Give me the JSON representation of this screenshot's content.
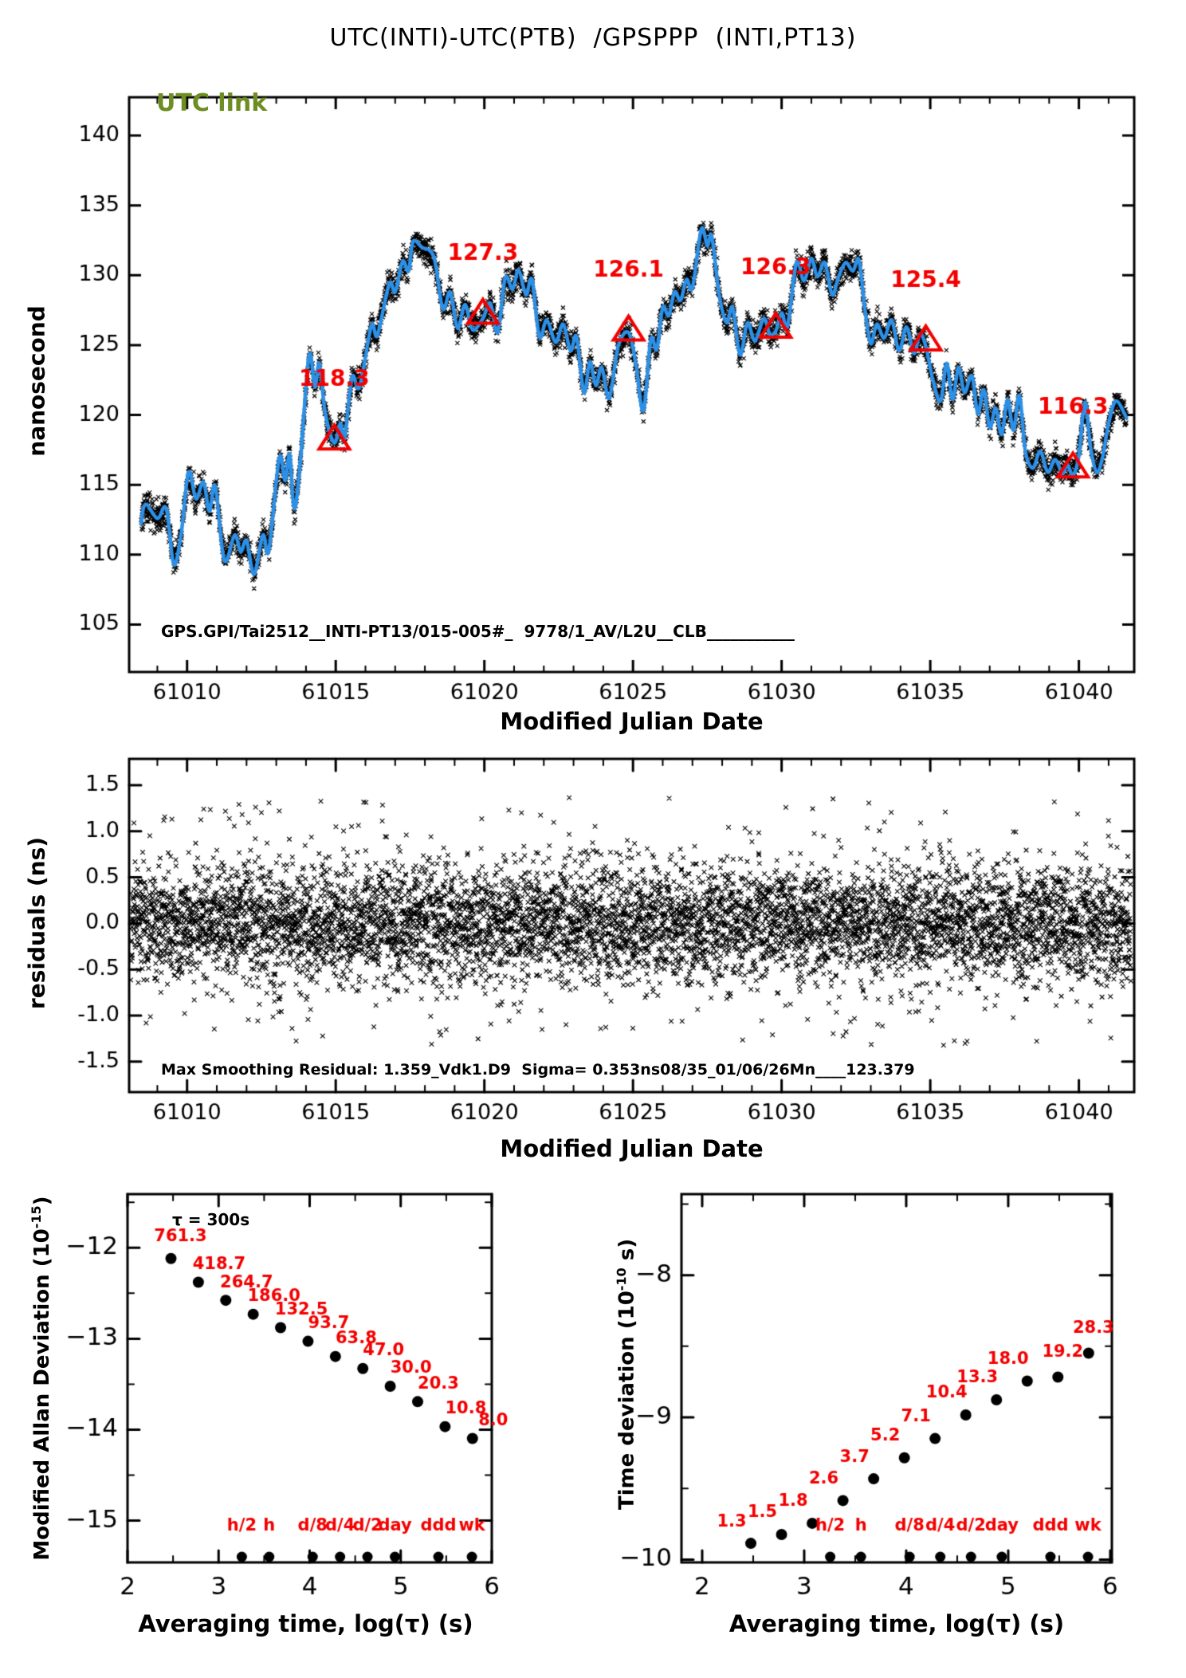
{
  "title": "UTC(INTI)-UTC(PTB)  /GPSPPP  (INTI,PT13)",
  "panels": {
    "top": {
      "corner_label": "UTC link",
      "ylabel": "nanosecond",
      "xlabel": "Modified Julian Date",
      "annotation": "GPS.GPI/Tai2512__INTI-PT13/015-005#_  9778/1_AV/L2U__CLB___________"
    },
    "residuals": {
      "ylabel": "residuals (ns)",
      "xlabel": "Modified Julian Date",
      "annotation": "Max Smoothing Residual: 1.359_Vdk1.D9  Sigma= 0.353ns08/35_01/06/26Mn____123.379"
    },
    "mdev": {
      "ylabel_prefix": "Modified Allan Deviation (10",
      "ylabel_exp": "-15",
      "ylabel_suffix": ")",
      "xlabel": "Averaging time, log(τ) (s)",
      "tau_note": "τ = 300s"
    },
    "tdev": {
      "ylabel_prefix": "Time deviation (10",
      "ylabel_exp": "-10",
      "ylabel_suffix": " s)",
      "xlabel": "Averaging time, log(τ) (s)"
    }
  },
  "colors": {
    "line_blue": "#2b90e8",
    "marker_black": "#000000",
    "accent_red": "#f40000",
    "olive_green": "#6e8e22"
  },
  "chart_data": [
    {
      "id": "utc-link-timeseries",
      "type": "line",
      "title": "UTC(INTI)-UTC(PTB) /GPSPPP (INTI,PT13)",
      "xlabel": "Modified Julian Date",
      "ylabel": "nanosecond",
      "xlim": [
        61008.05,
        61041.86
      ],
      "ylim": [
        101.6,
        142.74
      ],
      "xticks": [
        61010,
        61015,
        61020,
        61025,
        61030,
        61035,
        61040
      ],
      "xtick_labels": [
        "61010",
        "61015",
        "61020",
        "61025",
        "61030",
        "61035",
        "61040"
      ],
      "xminor_step": 1,
      "yticks": [
        140,
        135,
        130,
        125,
        120,
        115,
        110,
        105
      ],
      "ytick_labels": [
        "140",
        "135",
        "130",
        "125",
        "120",
        "115",
        "110",
        "105"
      ],
      "data_domain": [
        61008.45,
        61041.6
      ],
      "scatter_n": 5200,
      "noise_sigma_ns": 0.5,
      "smoothed_keypoints": [
        [
          61008.45,
          112.2
        ],
        [
          61008.6,
          113.6
        ],
        [
          61009.0,
          112.6
        ],
        [
          61009.3,
          113.3
        ],
        [
          61009.55,
          109.3
        ],
        [
          61009.8,
          111.5
        ],
        [
          61010.05,
          115.9
        ],
        [
          61010.3,
          114.0
        ],
        [
          61010.55,
          115.2
        ],
        [
          61010.75,
          113.1
        ],
        [
          61010.95,
          114.9
        ],
        [
          61011.25,
          109.6
        ],
        [
          61011.6,
          111.4
        ],
        [
          61011.8,
          110.2
        ],
        [
          61012.0,
          111.0
        ],
        [
          61012.25,
          108.6
        ],
        [
          61012.55,
          111.4
        ],
        [
          61012.75,
          110.3
        ],
        [
          61013.1,
          116.9
        ],
        [
          61013.3,
          115.3
        ],
        [
          61013.45,
          117.2
        ],
        [
          61013.6,
          113.3
        ],
        [
          61013.8,
          116.4
        ],
        [
          61014.1,
          124.2
        ],
        [
          61014.3,
          122.0
        ],
        [
          61014.45,
          123.7
        ],
        [
          61014.65,
          120.1
        ],
        [
          61014.95,
          118.0
        ],
        [
          61015.15,
          119.4
        ],
        [
          61015.3,
          118.4
        ],
        [
          61015.55,
          122.7
        ],
        [
          61015.8,
          122.0
        ],
        [
          61016.2,
          126.4
        ],
        [
          61016.4,
          125.7
        ],
        [
          61016.8,
          129.4
        ],
        [
          61017.0,
          128.8
        ],
        [
          61017.25,
          131.0
        ],
        [
          61017.45,
          130.3
        ],
        [
          61017.6,
          132.4
        ],
        [
          61017.9,
          132.0
        ],
        [
          61018.3,
          131.3
        ],
        [
          61018.6,
          127.6
        ],
        [
          61018.85,
          128.8
        ],
        [
          61019.1,
          126.2
        ],
        [
          61019.35,
          127.9
        ],
        [
          61019.6,
          126.1
        ],
        [
          61019.95,
          126.9
        ],
        [
          61020.2,
          128.0
        ],
        [
          61020.45,
          125.9
        ],
        [
          61020.7,
          129.8
        ],
        [
          61020.95,
          129.0
        ],
        [
          61021.15,
          130.4
        ],
        [
          61021.4,
          128.6
        ],
        [
          61021.6,
          129.7
        ],
        [
          61021.85,
          125.6
        ],
        [
          61022.1,
          126.8
        ],
        [
          61022.4,
          125.2
        ],
        [
          61022.65,
          126.5
        ],
        [
          61022.9,
          124.6
        ],
        [
          61023.1,
          125.6
        ],
        [
          61023.35,
          121.6
        ],
        [
          61023.55,
          123.8
        ],
        [
          61023.75,
          122.1
        ],
        [
          61023.95,
          123.4
        ],
        [
          61024.2,
          121.2
        ],
        [
          61024.5,
          124.9
        ],
        [
          61024.85,
          125.9
        ],
        [
          61025.1,
          123.6
        ],
        [
          61025.35,
          120.3
        ],
        [
          61025.6,
          125.4
        ],
        [
          61025.8,
          124.7
        ],
        [
          61026.0,
          127.7
        ],
        [
          61026.2,
          127.1
        ],
        [
          61026.4,
          128.8
        ],
        [
          61026.6,
          128.2
        ],
        [
          61026.8,
          129.7
        ],
        [
          61027.0,
          129.1
        ],
        [
          61027.3,
          133.3
        ],
        [
          61027.5,
          132.1
        ],
        [
          61027.65,
          132.8
        ],
        [
          61027.9,
          128.6
        ],
        [
          61028.15,
          126.6
        ],
        [
          61028.35,
          127.7
        ],
        [
          61028.6,
          124.3
        ],
        [
          61028.85,
          126.6
        ],
        [
          61029.1,
          125.3
        ],
        [
          61029.4,
          126.9
        ],
        [
          61029.6,
          125.8
        ],
        [
          61029.8,
          126.0
        ],
        [
          61030.0,
          127.3
        ],
        [
          61030.2,
          126.4
        ],
        [
          61030.5,
          130.9
        ],
        [
          61030.75,
          129.6
        ],
        [
          61031.0,
          131.2
        ],
        [
          61031.2,
          129.9
        ],
        [
          61031.45,
          130.9
        ],
        [
          61031.7,
          128.6
        ],
        [
          61031.9,
          129.8
        ],
        [
          61032.15,
          130.9
        ],
        [
          61032.4,
          130.3
        ],
        [
          61032.6,
          131.1
        ],
        [
          61032.8,
          127.6
        ],
        [
          61033.0,
          125.1
        ],
        [
          61033.2,
          126.5
        ],
        [
          61033.45,
          125.5
        ],
        [
          61033.7,
          126.8
        ],
        [
          61033.95,
          124.6
        ],
        [
          61034.2,
          126.3
        ],
        [
          61034.45,
          124.4
        ],
        [
          61034.65,
          125.8
        ],
        [
          61034.85,
          124.9
        ],
        [
          61035.1,
          122.4
        ],
        [
          61035.35,
          121.0
        ],
        [
          61035.55,
          123.7
        ],
        [
          61035.75,
          121.1
        ],
        [
          61035.95,
          123.4
        ],
        [
          61036.15,
          121.6
        ],
        [
          61036.4,
          122.8
        ],
        [
          61036.6,
          120.1
        ],
        [
          61036.8,
          121.8
        ],
        [
          61037.0,
          119.1
        ],
        [
          61037.2,
          120.5
        ],
        [
          61037.4,
          118.6
        ],
        [
          61037.6,
          121.1
        ],
        [
          61037.8,
          118.9
        ],
        [
          61038.0,
          121.4
        ],
        [
          61038.2,
          117.4
        ],
        [
          61038.45,
          116.2
        ],
        [
          61038.7,
          117.4
        ],
        [
          61038.95,
          115.9
        ],
        [
          61039.2,
          116.8
        ],
        [
          61039.45,
          115.8
        ],
        [
          61039.6,
          116.5
        ],
        [
          61039.8,
          115.7
        ],
        [
          61040.0,
          117.1
        ],
        [
          61040.2,
          120.9
        ],
        [
          61040.4,
          117.6
        ],
        [
          61040.6,
          115.9
        ],
        [
          61040.8,
          117.0
        ],
        [
          61041.0,
          119.4
        ],
        [
          61041.25,
          121.0
        ],
        [
          61041.6,
          119.8
        ]
      ],
      "calibration_points": [
        {
          "mjd": 61014.95,
          "value": 118.3,
          "label": "118.3"
        },
        {
          "mjd": 61019.95,
          "value": 127.3,
          "label": "127.3"
        },
        {
          "mjd": 61024.85,
          "value": 126.1,
          "label": "126.1"
        },
        {
          "mjd": 61029.8,
          "value": 126.3,
          "label": "126.3"
        },
        {
          "mjd": 61034.85,
          "value": 125.4,
          "label": "125.4"
        },
        {
          "mjd": 61039.8,
          "value": 116.3,
          "label": "116.3"
        }
      ]
    },
    {
      "id": "smoothing-residuals",
      "type": "scatter",
      "xlabel": "Modified Julian Date",
      "ylabel": "residuals (ns)",
      "xlim": [
        61008.05,
        61041.86
      ],
      "ylim": [
        -1.83,
        1.785
      ],
      "xticks": [
        61010,
        61015,
        61020,
        61025,
        61030,
        61035,
        61040
      ],
      "xtick_labels": [
        "61010",
        "61015",
        "61020",
        "61025",
        "61030",
        "61035",
        "61040"
      ],
      "xminor_step": 1,
      "yticks": [
        1.5,
        1.0,
        0.5,
        0.0,
        -0.5,
        -1.0,
        -1.5
      ],
      "ytick_labels": [
        "1.5",
        "1.0",
        "0.5",
        "0.0",
        "-0.5",
        "-1.0",
        "-1.5"
      ],
      "data_domain": [
        61008.1,
        61041.75
      ],
      "scatter_n": 6800,
      "sigma_ns": 0.353,
      "max_residual_ns": 1.359
    },
    {
      "id": "modified-allan-deviation",
      "type": "scatter",
      "xlabel": "Averaging time, log(τ) (s)",
      "ylabel": "Modified Allan Deviation (10^-15)",
      "xlim": [
        2.0,
        6.0
      ],
      "ylim": [
        -15.46,
        -11.41
      ],
      "xticks": [
        2,
        3,
        4,
        5,
        6
      ],
      "xtick_labels": [
        "2",
        "3",
        "4",
        "5",
        "6"
      ],
      "xminor": [
        2.5,
        3.5,
        4.5,
        5.5
      ],
      "yticks": [
        -12,
        -13,
        -14,
        -15
      ],
      "ytick_labels": [
        "−12",
        "−13",
        "−14",
        "−15"
      ],
      "yminor": [
        -11.5,
        -12.5,
        -13.5,
        -14.5
      ],
      "tau_note": "τ = 300s",
      "log_tau": [
        2.477,
        2.778,
        3.079,
        3.38,
        3.681,
        3.982,
        4.283,
        4.584,
        4.885,
        5.186,
        5.487,
        5.788
      ],
      "values_1e15": [
        761.3,
        418.7,
        264.7,
        186.0,
        132.5,
        93.7,
        63.8,
        47.0,
        30.0,
        20.3,
        10.8,
        8.0
      ],
      "value_exp": -15,
      "reference_marks": [
        {
          "label": "h/2",
          "log_tau": 3.255
        },
        {
          "label": "h",
          "log_tau": 3.556
        },
        {
          "label": "d/8",
          "log_tau": 4.033
        },
        {
          "label": "d/4",
          "log_tau": 4.334
        },
        {
          "label": "d/2",
          "log_tau": 4.635
        },
        {
          "label": "day",
          "log_tau": 4.937
        },
        {
          "label": "ddd",
          "log_tau": 5.414
        },
        {
          "label": "wk",
          "log_tau": 5.782
        }
      ]
    },
    {
      "id": "time-deviation",
      "type": "scatter",
      "xlabel": "Averaging time, log(τ) (s)",
      "ylabel": "Time deviation (10^-10 s)",
      "xlim": [
        1.797,
        6.016
      ],
      "ylim": [
        -10.02,
        -7.43
      ],
      "xticks": [
        2,
        3,
        4,
        5,
        6
      ],
      "xtick_labels": [
        "2",
        "3",
        "4",
        "5",
        "6"
      ],
      "xminor": [
        2.5,
        3.5,
        4.5,
        5.5
      ],
      "yticks": [
        -8,
        -9,
        -10
      ],
      "ytick_labels": [
        "−8",
        "−9",
        "−10"
      ],
      "yminor": [
        -7.5,
        -8.5,
        -9.5
      ],
      "log_tau": [
        2.477,
        2.778,
        3.079,
        3.38,
        3.681,
        3.982,
        4.283,
        4.584,
        4.885,
        5.186,
        5.487,
        5.788
      ],
      "values_1e10": [
        1.3,
        1.5,
        1.8,
        2.6,
        3.7,
        5.2,
        7.1,
        10.4,
        13.3,
        18.0,
        19.2,
        28.3
      ],
      "value_exp": -10,
      "reference_marks": [
        {
          "label": "h/2",
          "log_tau": 3.255
        },
        {
          "label": "h",
          "log_tau": 3.556
        },
        {
          "label": "d/8",
          "log_tau": 4.033
        },
        {
          "label": "d/4",
          "log_tau": 4.334
        },
        {
          "label": "d/2",
          "log_tau": 4.635
        },
        {
          "label": "day",
          "log_tau": 4.937
        },
        {
          "label": "ddd",
          "log_tau": 5.414
        },
        {
          "label": "wk",
          "log_tau": 5.782
        }
      ]
    }
  ]
}
